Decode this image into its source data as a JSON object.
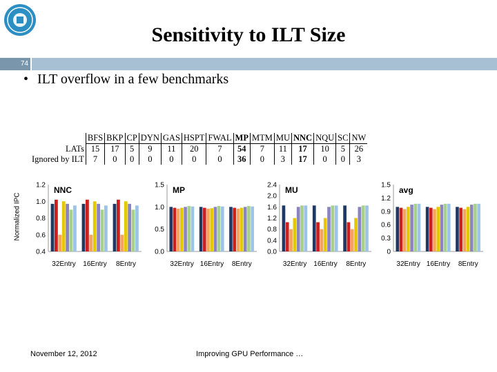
{
  "slide": {
    "title": "Sensitivity to ILT Size",
    "number": "74",
    "bullet": "ILT overflow in a few benchmarks",
    "footer_date": "November 12, 2012",
    "footer_text": "Improving GPU Performance …"
  },
  "lat_table": {
    "headers": [
      "BFS",
      "BKP",
      "CP",
      "DYN",
      "GAS",
      "HSPT",
      "FWAL",
      "MP",
      "MTM",
      "MU",
      "NNC",
      "NQU",
      "SC",
      "NW"
    ],
    "bold_headers": [
      "MP",
      "NNC"
    ],
    "rows": [
      {
        "label": "LATs",
        "values": [
          "15",
          "17",
          "5",
          "9",
          "11",
          "20",
          "7",
          "54",
          "7",
          "11",
          "17",
          "10",
          "5",
          "26"
        ]
      },
      {
        "label": "Ignored by ILT",
        "values": [
          "7",
          "0",
          "0",
          "0",
          "0",
          "0",
          "0",
          "36",
          "0",
          "3",
          "17",
          "0",
          "0",
          "3"
        ]
      }
    ]
  },
  "colors": {
    "series": [
      "#1f3864",
      "#cc1f1f",
      "#f4a460",
      "#e6c800",
      "#8a85c0",
      "#a8d08d",
      "#9dc3e6"
    ],
    "header_bar": "#a8c0d4",
    "slide_num_bg": "#7a96ad"
  },
  "chart_data": [
    {
      "type": "bar",
      "title": "NNC",
      "ylabel": "Normalized IPC",
      "categories": [
        "32Entry",
        "16Entry",
        "8Entry"
      ],
      "ylim": [
        0.4,
        1.2
      ],
      "yticks": [
        "0.4",
        "0.6",
        "0.8",
        "1.0",
        "1.2"
      ],
      "series": [
        {
          "values": [
            0.97,
            0.97,
            0.97
          ]
        },
        {
          "values": [
            1.02,
            1.02,
            1.02
          ]
        },
        {
          "values": [
            0.6,
            0.6,
            0.6
          ]
        },
        {
          "values": [
            1.0,
            1.0,
            1.0
          ]
        },
        {
          "values": [
            0.97,
            0.97,
            0.97
          ]
        },
        {
          "values": [
            0.9,
            0.9,
            0.9
          ]
        },
        {
          "values": [
            0.95,
            0.95,
            0.95
          ]
        }
      ]
    },
    {
      "type": "bar",
      "title": "MP",
      "ylabel": "",
      "categories": [
        "32Entry",
        "16Entry",
        "8Entry"
      ],
      "ylim": [
        0.0,
        1.5
      ],
      "yticks": [
        "0.0",
        "0.5",
        "1.0",
        "1.5"
      ],
      "series": [
        {
          "values": [
            1.0,
            1.0,
            1.0
          ]
        },
        {
          "values": [
            0.98,
            0.98,
            0.98
          ]
        },
        {
          "values": [
            0.96,
            0.96,
            0.96
          ]
        },
        {
          "values": [
            0.98,
            0.97,
            0.98
          ]
        },
        {
          "values": [
            1.0,
            1.0,
            1.0
          ]
        },
        {
          "values": [
            1.02,
            1.02,
            1.02
          ]
        },
        {
          "values": [
            1.01,
            1.01,
            1.01
          ]
        }
      ]
    },
    {
      "type": "bar",
      "title": "MU",
      "ylabel": "",
      "categories": [
        "32Entry",
        "16Entry",
        "8Entry"
      ],
      "ylim": [
        0.0,
        2.4
      ],
      "yticks": [
        "0.0",
        "0.4",
        "0.8",
        "1.2",
        "1.6",
        "2.0",
        "2.4"
      ],
      "series": [
        {
          "values": [
            1.65,
            1.65,
            1.65
          ]
        },
        {
          "values": [
            1.05,
            1.05,
            1.05
          ]
        },
        {
          "values": [
            0.8,
            0.8,
            0.8
          ]
        },
        {
          "values": [
            1.2,
            1.2,
            1.2
          ]
        },
        {
          "values": [
            1.6,
            1.6,
            1.6
          ]
        },
        {
          "values": [
            1.65,
            1.65,
            1.65
          ]
        },
        {
          "values": [
            1.65,
            1.65,
            1.65
          ]
        }
      ]
    },
    {
      "type": "bar",
      "title": "avg",
      "ylabel": "",
      "categories": [
        "32Entry",
        "16Entry",
        "8Entry"
      ],
      "ylim": [
        0.0,
        1.5
      ],
      "yticks": [
        "0",
        "0.3",
        "0.6",
        "0.9",
        "1.2",
        "1.5"
      ],
      "series": [
        {
          "values": [
            1.0,
            1.0,
            1.0
          ]
        },
        {
          "values": [
            0.98,
            0.98,
            0.98
          ]
        },
        {
          "values": [
            0.95,
            0.95,
            0.95
          ]
        },
        {
          "values": [
            1.0,
            1.0,
            1.0
          ]
        },
        {
          "values": [
            1.05,
            1.05,
            1.05
          ]
        },
        {
          "values": [
            1.07,
            1.07,
            1.07
          ]
        },
        {
          "values": [
            1.07,
            1.07,
            1.07
          ]
        }
      ]
    }
  ]
}
